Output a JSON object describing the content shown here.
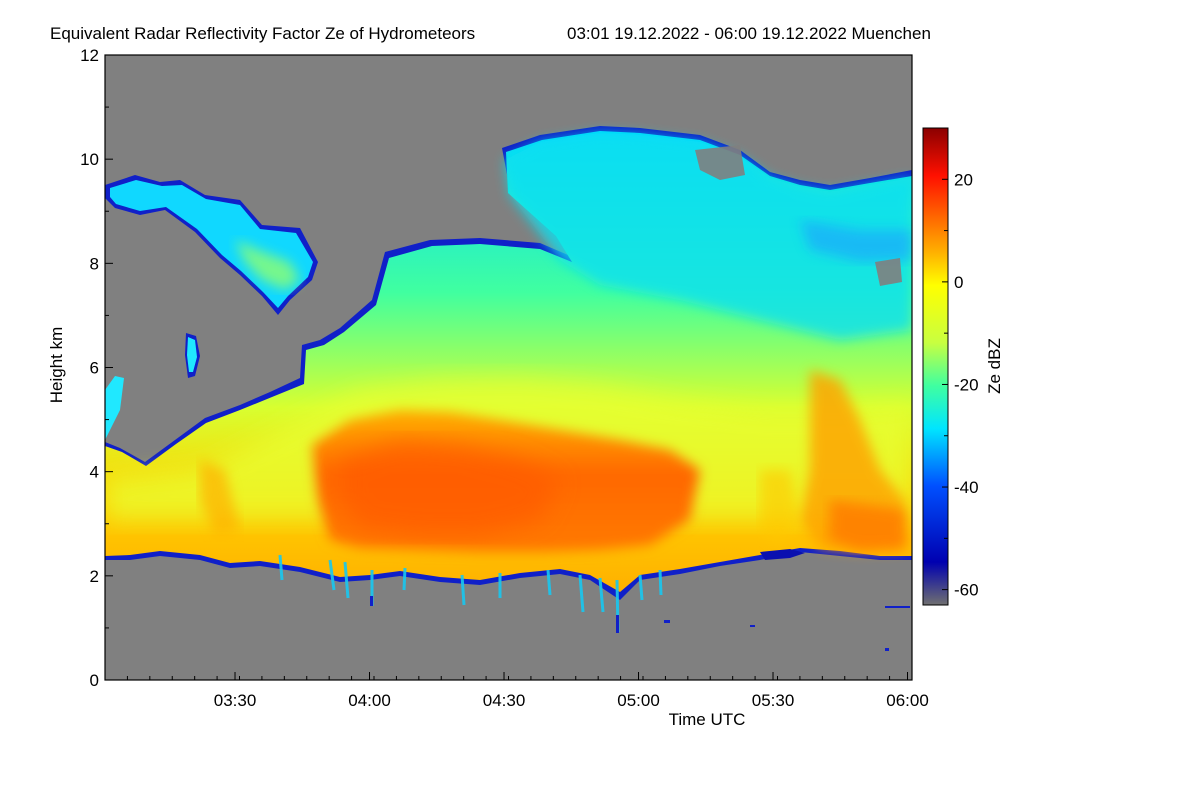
{
  "chart_data": {
    "type": "heatmap",
    "title": "Equivalent Radar Reflectivity Factor Ze of Hydrometeors",
    "subtitle": "03:01 19.12.2022 - 06:00 19.12.2022 Muenchen",
    "xlabel": "Time UTC",
    "ylabel": "Height km",
    "xlim": [
      "03:01",
      "06:01"
    ],
    "ylim": [
      0,
      12
    ],
    "x_ticks": [
      "03:30",
      "04:00",
      "04:30",
      "05:00",
      "05:30",
      "06:00"
    ],
    "y_ticks": [
      "0",
      "2",
      "4",
      "6",
      "8",
      "10",
      "12"
    ],
    "background_color": "#808080",
    "colorbar": {
      "label": "Ze dBZ",
      "range": [
        -63,
        30
      ],
      "ticks": [
        "20",
        "0",
        "-20",
        "-40",
        "-60"
      ],
      "colors": [
        "#707070",
        "#0000cc",
        "#0060ff",
        "#00e5ff",
        "#40ffa0",
        "#c8ff40",
        "#ffff00",
        "#ffb000",
        "#ff6000",
        "#ff0000",
        "#8b0000"
      ]
    },
    "features": [
      {
        "name": "cloud base",
        "height_km": [
          2.2,
          2.6
        ]
      },
      {
        "name": "max reflectivity core",
        "time_range": [
          "03:48",
          "05:10"
        ],
        "height_km": [
          2.6,
          4.6
        ],
        "ze_dbz": 12
      },
      {
        "name": "cloud top",
        "height_km": [
          4.5,
          10.5
        ]
      }
    ]
  }
}
